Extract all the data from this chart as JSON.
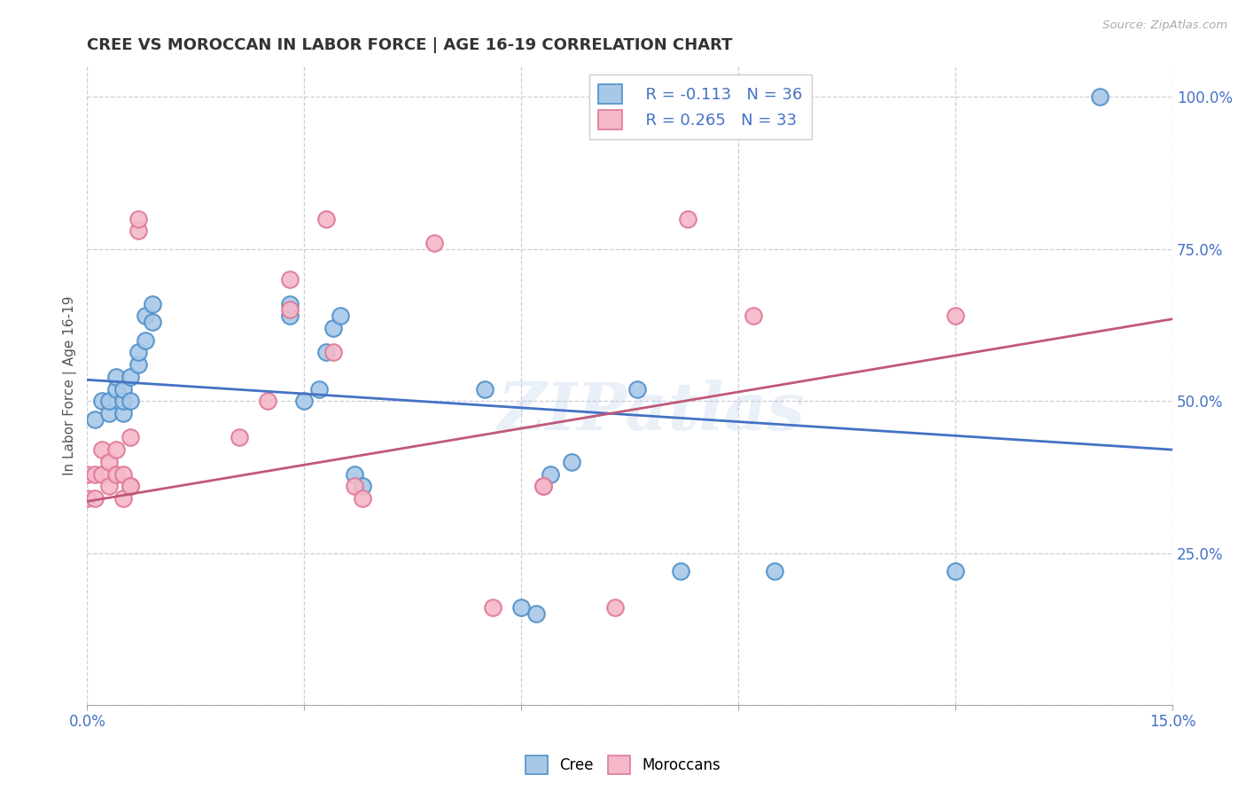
{
  "title": "CREE VS MOROCCAN IN LABOR FORCE | AGE 16-19 CORRELATION CHART",
  "source": "Source: ZipAtlas.com",
  "ylabel": "In Labor Force | Age 16-19",
  "xlim": [
    0.0,
    0.15
  ],
  "ylim": [
    0.0,
    1.05
  ],
  "xticks": [
    0.0,
    0.03,
    0.06,
    0.09,
    0.12,
    0.15
  ],
  "xtick_labels": [
    "0.0%",
    "",
    "",
    "",
    "",
    "15.0%"
  ],
  "yticks": [
    0.0,
    0.25,
    0.5,
    0.75,
    1.0
  ],
  "ytick_labels": [
    "",
    "25.0%",
    "50.0%",
    "75.0%",
    "100.0%"
  ],
  "watermark": "ZIPatlas",
  "legend_cree_r": "R = -0.113",
  "legend_cree_n": "N = 36",
  "legend_moroccan_r": "R = 0.265",
  "legend_moroccan_n": "N = 33",
  "cree_color": "#a8c8e8",
  "moroccan_color": "#f4b8c8",
  "cree_edge_color": "#5090c8",
  "moroccan_edge_color": "#e07898",
  "cree_line_color": "#4472c4",
  "moroccan_line_color": "#c05878",
  "title_color": "#333333",
  "axis_color": "#4472c4",
  "background_color": "#ffffff",
  "grid_color": "#c8c8d8",
  "cree_x": [
    0.001,
    0.002,
    0.003,
    0.003,
    0.004,
    0.004,
    0.005,
    0.005,
    0.005,
    0.006,
    0.006,
    0.007,
    0.007,
    0.008,
    0.008,
    0.009,
    0.009,
    0.028,
    0.028,
    0.032,
    0.033,
    0.034,
    0.035,
    0.037,
    0.038,
    0.055,
    0.06,
    0.062,
    0.064,
    0.067,
    0.076,
    0.082,
    0.095,
    0.12,
    0.14,
    0.03
  ],
  "cree_y": [
    0.47,
    0.5,
    0.48,
    0.5,
    0.52,
    0.54,
    0.48,
    0.5,
    0.52,
    0.5,
    0.54,
    0.56,
    0.58,
    0.6,
    0.64,
    0.63,
    0.66,
    0.64,
    0.66,
    0.52,
    0.58,
    0.62,
    0.64,
    0.38,
    0.36,
    0.52,
    0.16,
    0.15,
    0.38,
    0.4,
    0.52,
    0.22,
    0.22,
    0.22,
    1.0,
    0.5
  ],
  "moroccan_x": [
    0.0,
    0.0,
    0.001,
    0.001,
    0.002,
    0.002,
    0.003,
    0.003,
    0.004,
    0.004,
    0.005,
    0.005,
    0.006,
    0.006,
    0.006,
    0.007,
    0.007,
    0.021,
    0.025,
    0.028,
    0.028,
    0.033,
    0.034,
    0.037,
    0.038,
    0.056,
    0.063,
    0.063,
    0.073,
    0.083,
    0.092,
    0.12,
    0.048
  ],
  "moroccan_y": [
    0.34,
    0.38,
    0.34,
    0.38,
    0.38,
    0.42,
    0.36,
    0.4,
    0.38,
    0.42,
    0.34,
    0.38,
    0.44,
    0.36,
    0.36,
    0.78,
    0.8,
    0.44,
    0.5,
    0.65,
    0.7,
    0.8,
    0.58,
    0.36,
    0.34,
    0.16,
    0.36,
    0.36,
    0.16,
    0.8,
    0.64,
    0.64,
    0.76
  ]
}
